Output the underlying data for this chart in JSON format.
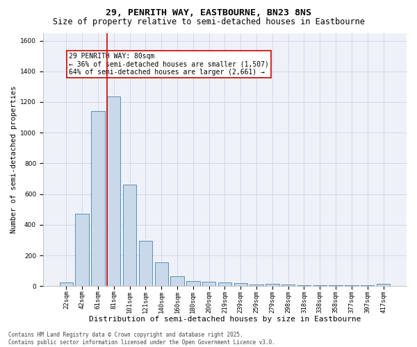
{
  "title1": "29, PENRITH WAY, EASTBOURNE, BN23 8NS",
  "title2": "Size of property relative to semi-detached houses in Eastbourne",
  "xlabel": "Distribution of semi-detached houses by size in Eastbourne",
  "ylabel": "Number of semi-detached properties",
  "categories": [
    "22sqm",
    "42sqm",
    "61sqm",
    "81sqm",
    "101sqm",
    "121sqm",
    "140sqm",
    "160sqm",
    "180sqm",
    "200sqm",
    "219sqm",
    "239sqm",
    "259sqm",
    "279sqm",
    "298sqm",
    "318sqm",
    "338sqm",
    "358sqm",
    "377sqm",
    "397sqm",
    "417sqm"
  ],
  "values": [
    25,
    470,
    1140,
    1235,
    660,
    295,
    155,
    65,
    35,
    30,
    25,
    20,
    10,
    15,
    10,
    5,
    5,
    5,
    5,
    5,
    15
  ],
  "bar_color": "#c9d9ea",
  "bar_edge_color": "#5b8db8",
  "red_line_bar_index": 3,
  "annotation_text": "29 PENRITH WAY: 80sqm\n← 36% of semi-detached houses are smaller (1,507)\n64% of semi-detached houses are larger (2,661) →",
  "annotation_box_color": "#ffffff",
  "annotation_box_edge": "#cc0000",
  "red_line_color": "#cc0000",
  "grid_color": "#d0d8e8",
  "background_color": "#eef2f8",
  "ylim": [
    0,
    1650
  ],
  "yticks": [
    0,
    200,
    400,
    600,
    800,
    1000,
    1200,
    1400,
    1600
  ],
  "footnote": "Contains HM Land Registry data © Crown copyright and database right 2025.\nContains public sector information licensed under the Open Government Licence v3.0.",
  "title1_fontsize": 9.5,
  "title2_fontsize": 8.5,
  "xlabel_fontsize": 8,
  "ylabel_fontsize": 7.5,
  "tick_fontsize": 6.5,
  "annot_fontsize": 7,
  "footnote_fontsize": 5.5
}
